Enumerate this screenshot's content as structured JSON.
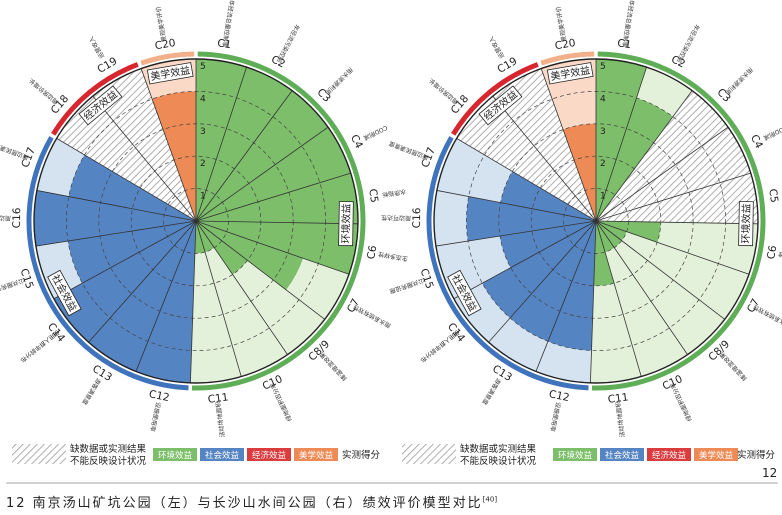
{
  "figure": {
    "caption": "12 南京汤山矿坑公园（左）与长沙山水间公园（右）绩效评价模型对比",
    "caption_ref": "[40]",
    "page_number": "12"
  },
  "colors": {
    "ecology_dark": "#7cbe6a",
    "ecology_light": "#e4f1da",
    "social_dark": "#5584c3",
    "social_light": "#d5e3f1",
    "economic_dark": "#dc3b3e",
    "economic_light": "#f5d2d2",
    "aesthetic_dark": "#ee8a55",
    "aesthetic_light": "#fad9c7",
    "ecology_ring": "#5fae57",
    "social_ring": "#3f74bd",
    "economic_ring": "#d8262f",
    "aesthetic_ring": "#f2b08a"
  },
  "legend": {
    "nodata_line1": "缺数据或实测结果",
    "nodata_line2": "不能反映设计状况",
    "ecology": "环境效益",
    "social": "社会效益",
    "economic": "经济效益",
    "aesthetic": "美学效益",
    "measured": "实测得分"
  },
  "chart_data": [
    {
      "type": "polar-bar",
      "title": "南京汤山矿坑公园",
      "r_axis": {
        "ticks": [
          1,
          2,
          3,
          4,
          5
        ],
        "max": 5
      },
      "sector_labels": [
        "C1",
        "C2",
        "C3",
        "C4",
        "C5",
        "C6",
        "C7",
        "C8/9",
        "C10",
        "C11",
        "C12",
        "C13",
        "C14",
        "C15",
        "C16",
        "C17",
        "C18",
        "C19",
        "C20"
      ],
      "sector_descriptions": [
        "年径流总量控制率",
        "年径流污染控制",
        "雨水资源利用",
        "COD削减",
        "水质指标",
        "生态多样性",
        "雨水系统有效性",
        "降温增湿效果",
        "绿地面积百分率",
        "活动场地面积",
        "设施使用率",
        "游客满意度",
        "使用人群年龄分布",
        "公共服务设施",
        "周边可达性",
        "周边居民满意度",
        "周边房价增长",
        "运营收入",
        "景观美学评价"
      ],
      "categories": {
        "ecology": {
          "label": "环境效益",
          "sectors": [
            "C1",
            "C2",
            "C3",
            "C4",
            "C5",
            "C6",
            "C7",
            "C8/9",
            "C10",
            "C11"
          ]
        },
        "social": {
          "label": "社会效益",
          "sectors": [
            "C12",
            "C13",
            "C14",
            "C15",
            "C16",
            "C17"
          ]
        },
        "economic": {
          "label": "经济效益",
          "sectors": [
            "C18",
            "C19"
          ]
        },
        "aesthetic": {
          "label": "美学效益",
          "sectors": [
            "C20"
          ]
        }
      },
      "values": [
        5,
        5,
        5,
        5,
        5,
        5,
        3.5,
        2,
        1,
        1,
        5,
        5,
        5,
        4,
        5,
        4,
        null,
        null,
        4
      ],
      "no_data": [
        "C18",
        "C19"
      ]
    },
    {
      "type": "polar-bar",
      "title": "长沙山水间公园",
      "r_axis": {
        "ticks": [
          1,
          2,
          3,
          4,
          5
        ],
        "max": 5
      },
      "sector_labels": [
        "C1",
        "C2",
        "C3",
        "C4",
        "C5",
        "C6",
        "C7",
        "C8/9",
        "C10",
        "C11",
        "C12",
        "C13",
        "C14",
        "C15",
        "C16",
        "C17",
        "C18",
        "C19",
        "C20"
      ],
      "sector_descriptions": [
        "年径流总量控制率",
        "年径流污染控制",
        "雨水资源利用",
        "COD削减",
        "水质指标",
        "生态多样性",
        "雨水系统有效性",
        "降温增湿效果",
        "绿地面积百分率",
        "活动场地面积",
        "设施使用率",
        "游客满意度",
        "使用人群年龄分布",
        "公共服务设施",
        "周边可达性",
        "周边居民满意度",
        "周边房价增长",
        "运营收入",
        "景观美学评价"
      ],
      "categories": {
        "ecology": {
          "label": "环境效益",
          "sectors": [
            "C1",
            "C2",
            "C3",
            "C4",
            "C5",
            "C6",
            "C7",
            "C8/9",
            "C10",
            "C11"
          ]
        },
        "social": {
          "label": "社会效益",
          "sectors": [
            "C12",
            "C13",
            "C14",
            "C15",
            "C16",
            "C17"
          ]
        },
        "economic": {
          "label": "经济效益",
          "sectors": [
            "C18",
            "C19"
          ]
        },
        "aesthetic": {
          "label": "美学效益",
          "sectors": [
            "C20"
          ]
        }
      },
      "values": [
        5,
        4,
        null,
        null,
        null,
        2,
        1,
        1,
        1,
        2,
        4,
        4,
        4,
        3,
        4,
        3,
        null,
        null,
        3
      ],
      "no_data": [
        "C3",
        "C4",
        "C5",
        "C18",
        "C19"
      ]
    }
  ]
}
